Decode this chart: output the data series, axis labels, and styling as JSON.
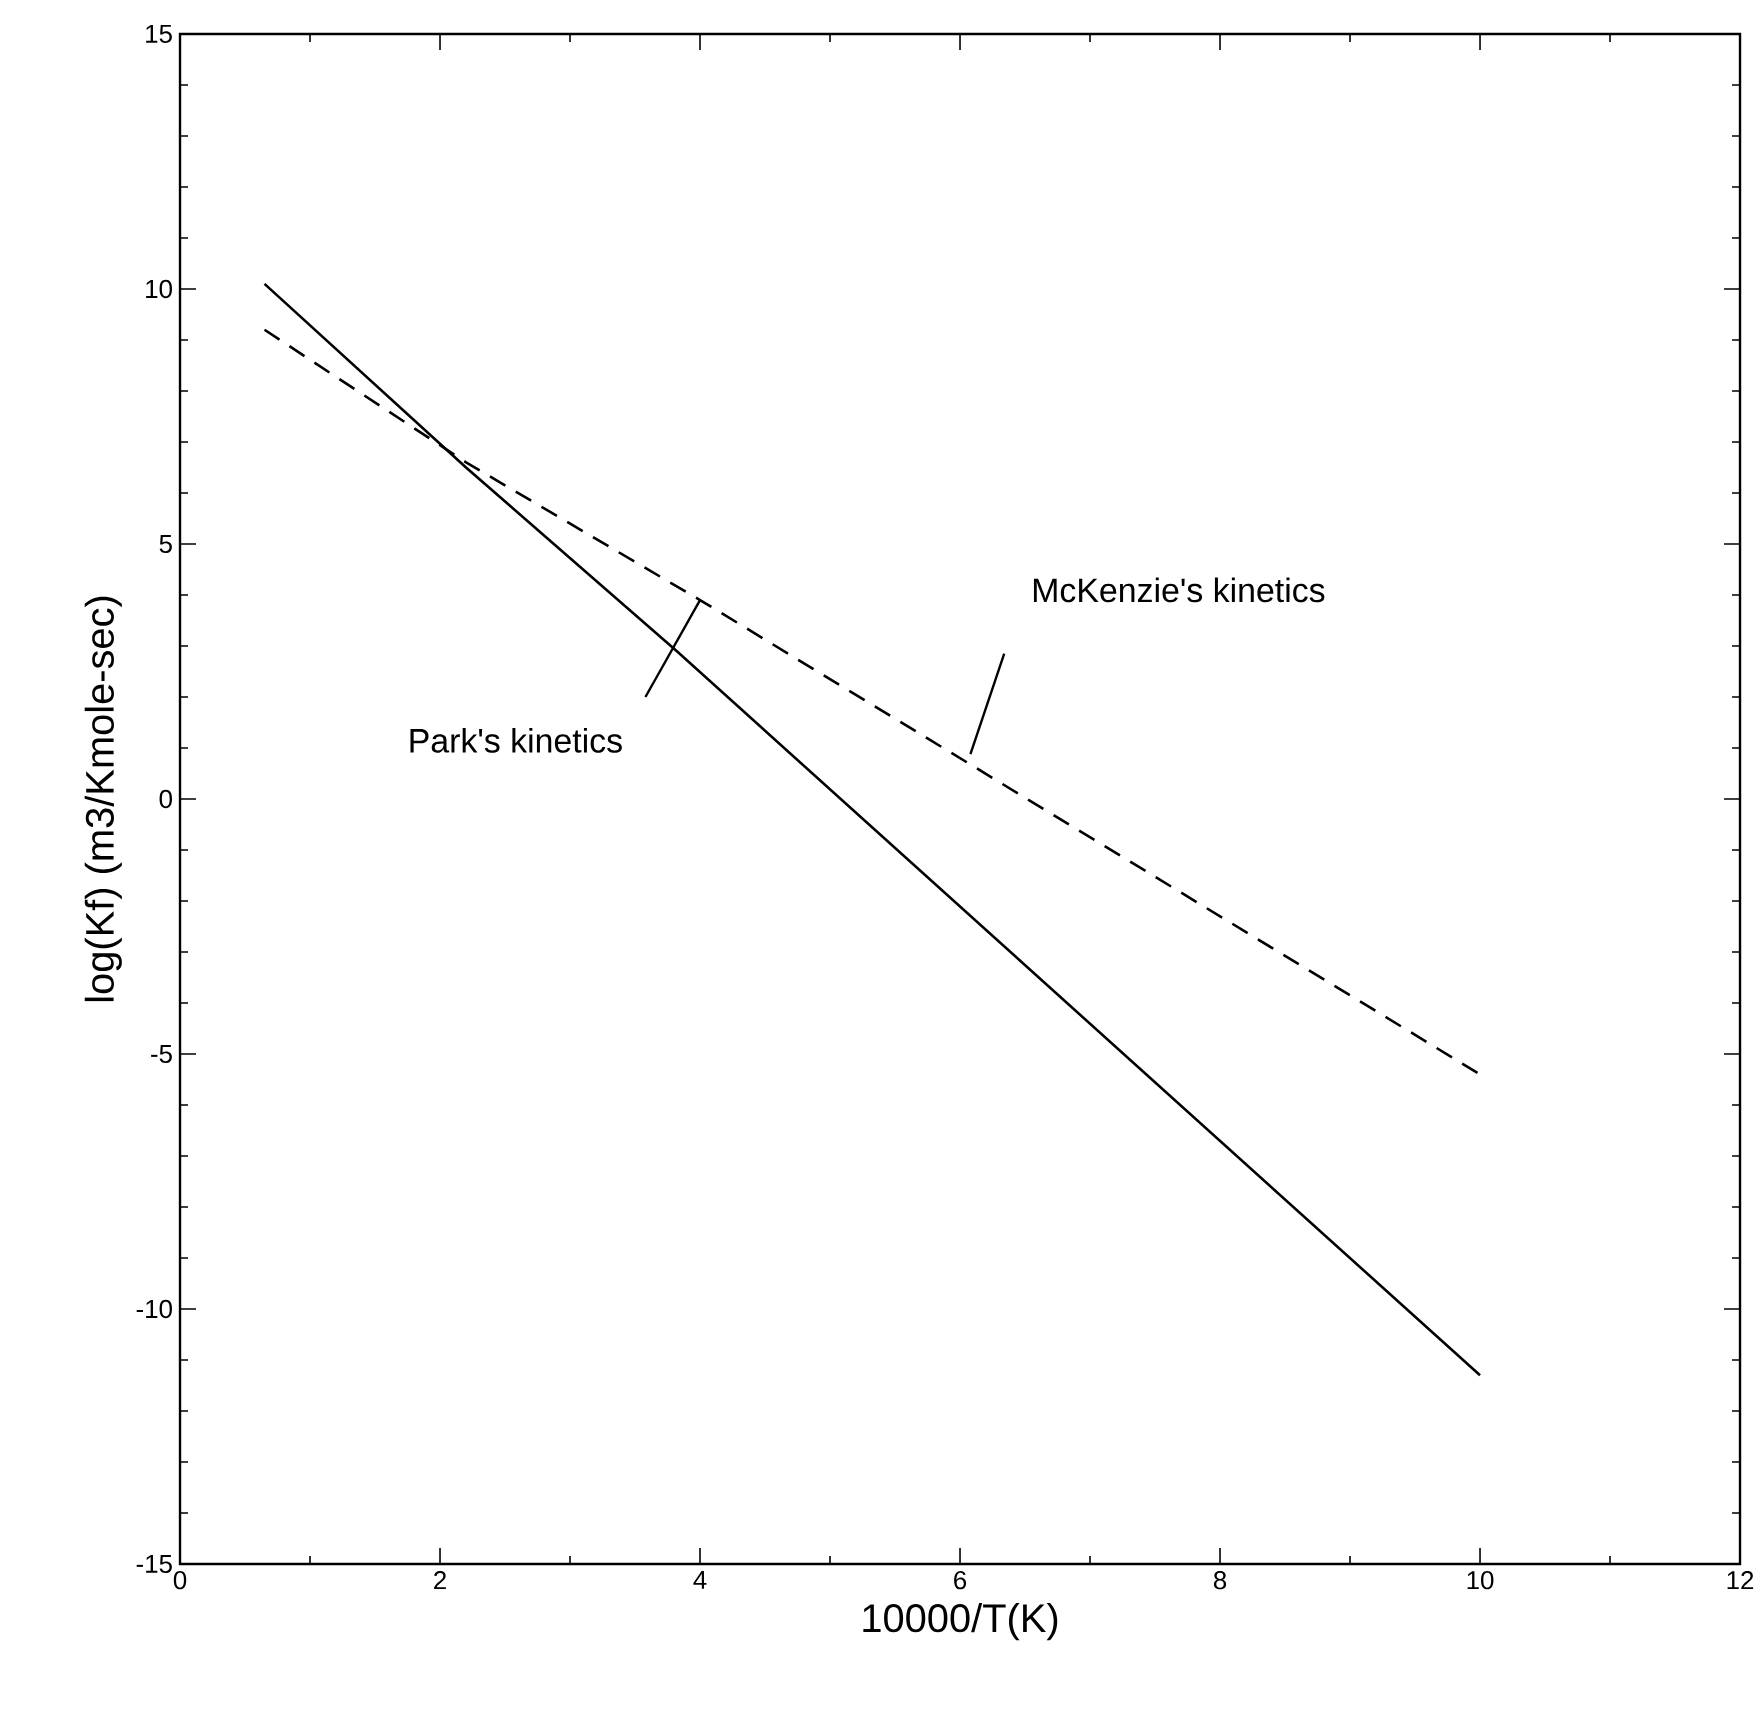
{
  "chart_data": {
    "type": "line",
    "xlabel": "10000/T(K)",
    "ylabel": "log(Kf) (m3/Kmole-sec)",
    "xlim": [
      0,
      12
    ],
    "ylim": [
      -15,
      15
    ],
    "xticks": [
      0,
      2,
      4,
      6,
      8,
      10,
      12
    ],
    "yticks": [
      -15,
      -10,
      -5,
      0,
      5,
      10,
      15
    ],
    "series": [
      {
        "color": "#000000",
        "line_style": "solid",
        "x": [
          0.65,
          2.2,
          3.82,
          10
        ],
        "values": [
          10.1,
          6.5,
          2.9,
          -11.3
        ]
      },
      {
        "color": "#000000",
        "line_style": "dashed",
        "x": [
          0.65,
          2.2,
          4,
          10
        ],
        "values": [
          9.2,
          6.6,
          3.9,
          -5.4
        ]
      }
    ],
    "annotations": [
      "McKenzie's kinetics",
      {
        "text": "Park's kinetics",
        "x": 3.82,
        "y": 2.9
      }
    ]
  }
}
